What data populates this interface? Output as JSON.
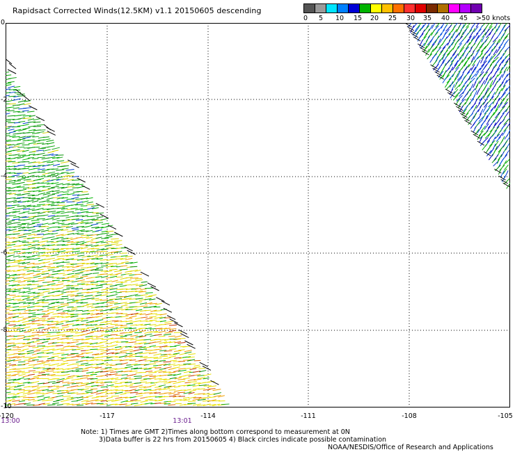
{
  "title": "Rapidsact Corrected Winds(12.5KM) v1.1 20150605 descending",
  "color_scale": {
    "swatches": [
      "#555555",
      "#9a9a9a",
      "#00e5ff",
      "#0080ff",
      "#0000d6",
      "#00b400",
      "#ffff00",
      "#ffc000",
      "#ff7000",
      "#ff3030",
      "#e00000",
      "#7a2a00",
      "#b07000",
      "#ff00ff",
      "#b400ff",
      "#7000b0"
    ],
    "labels": [
      "0",
      "5",
      "10",
      "15",
      "20",
      "25",
      "30",
      "35",
      "40",
      "45",
      ">50 knots"
    ]
  },
  "lon_labels": [
    "-120",
    "-117",
    "-114",
    "-111",
    "-108",
    "-105"
  ],
  "lat_labels": [
    "0",
    "-2",
    "-4",
    "-6",
    "-8",
    "-10"
  ],
  "time_labels": [
    "13:00",
    "13:01"
  ],
  "notes": [
    "Note: 1) Times are GMT 2)Times along bottom correspond to measurement at 0N",
    "3)Data buffer is 22 hrs from 20150605 4) Black circles indicate possible contamination"
  ],
  "credit": "NOAA/NESDIS/Office of Research and Applications"
}
